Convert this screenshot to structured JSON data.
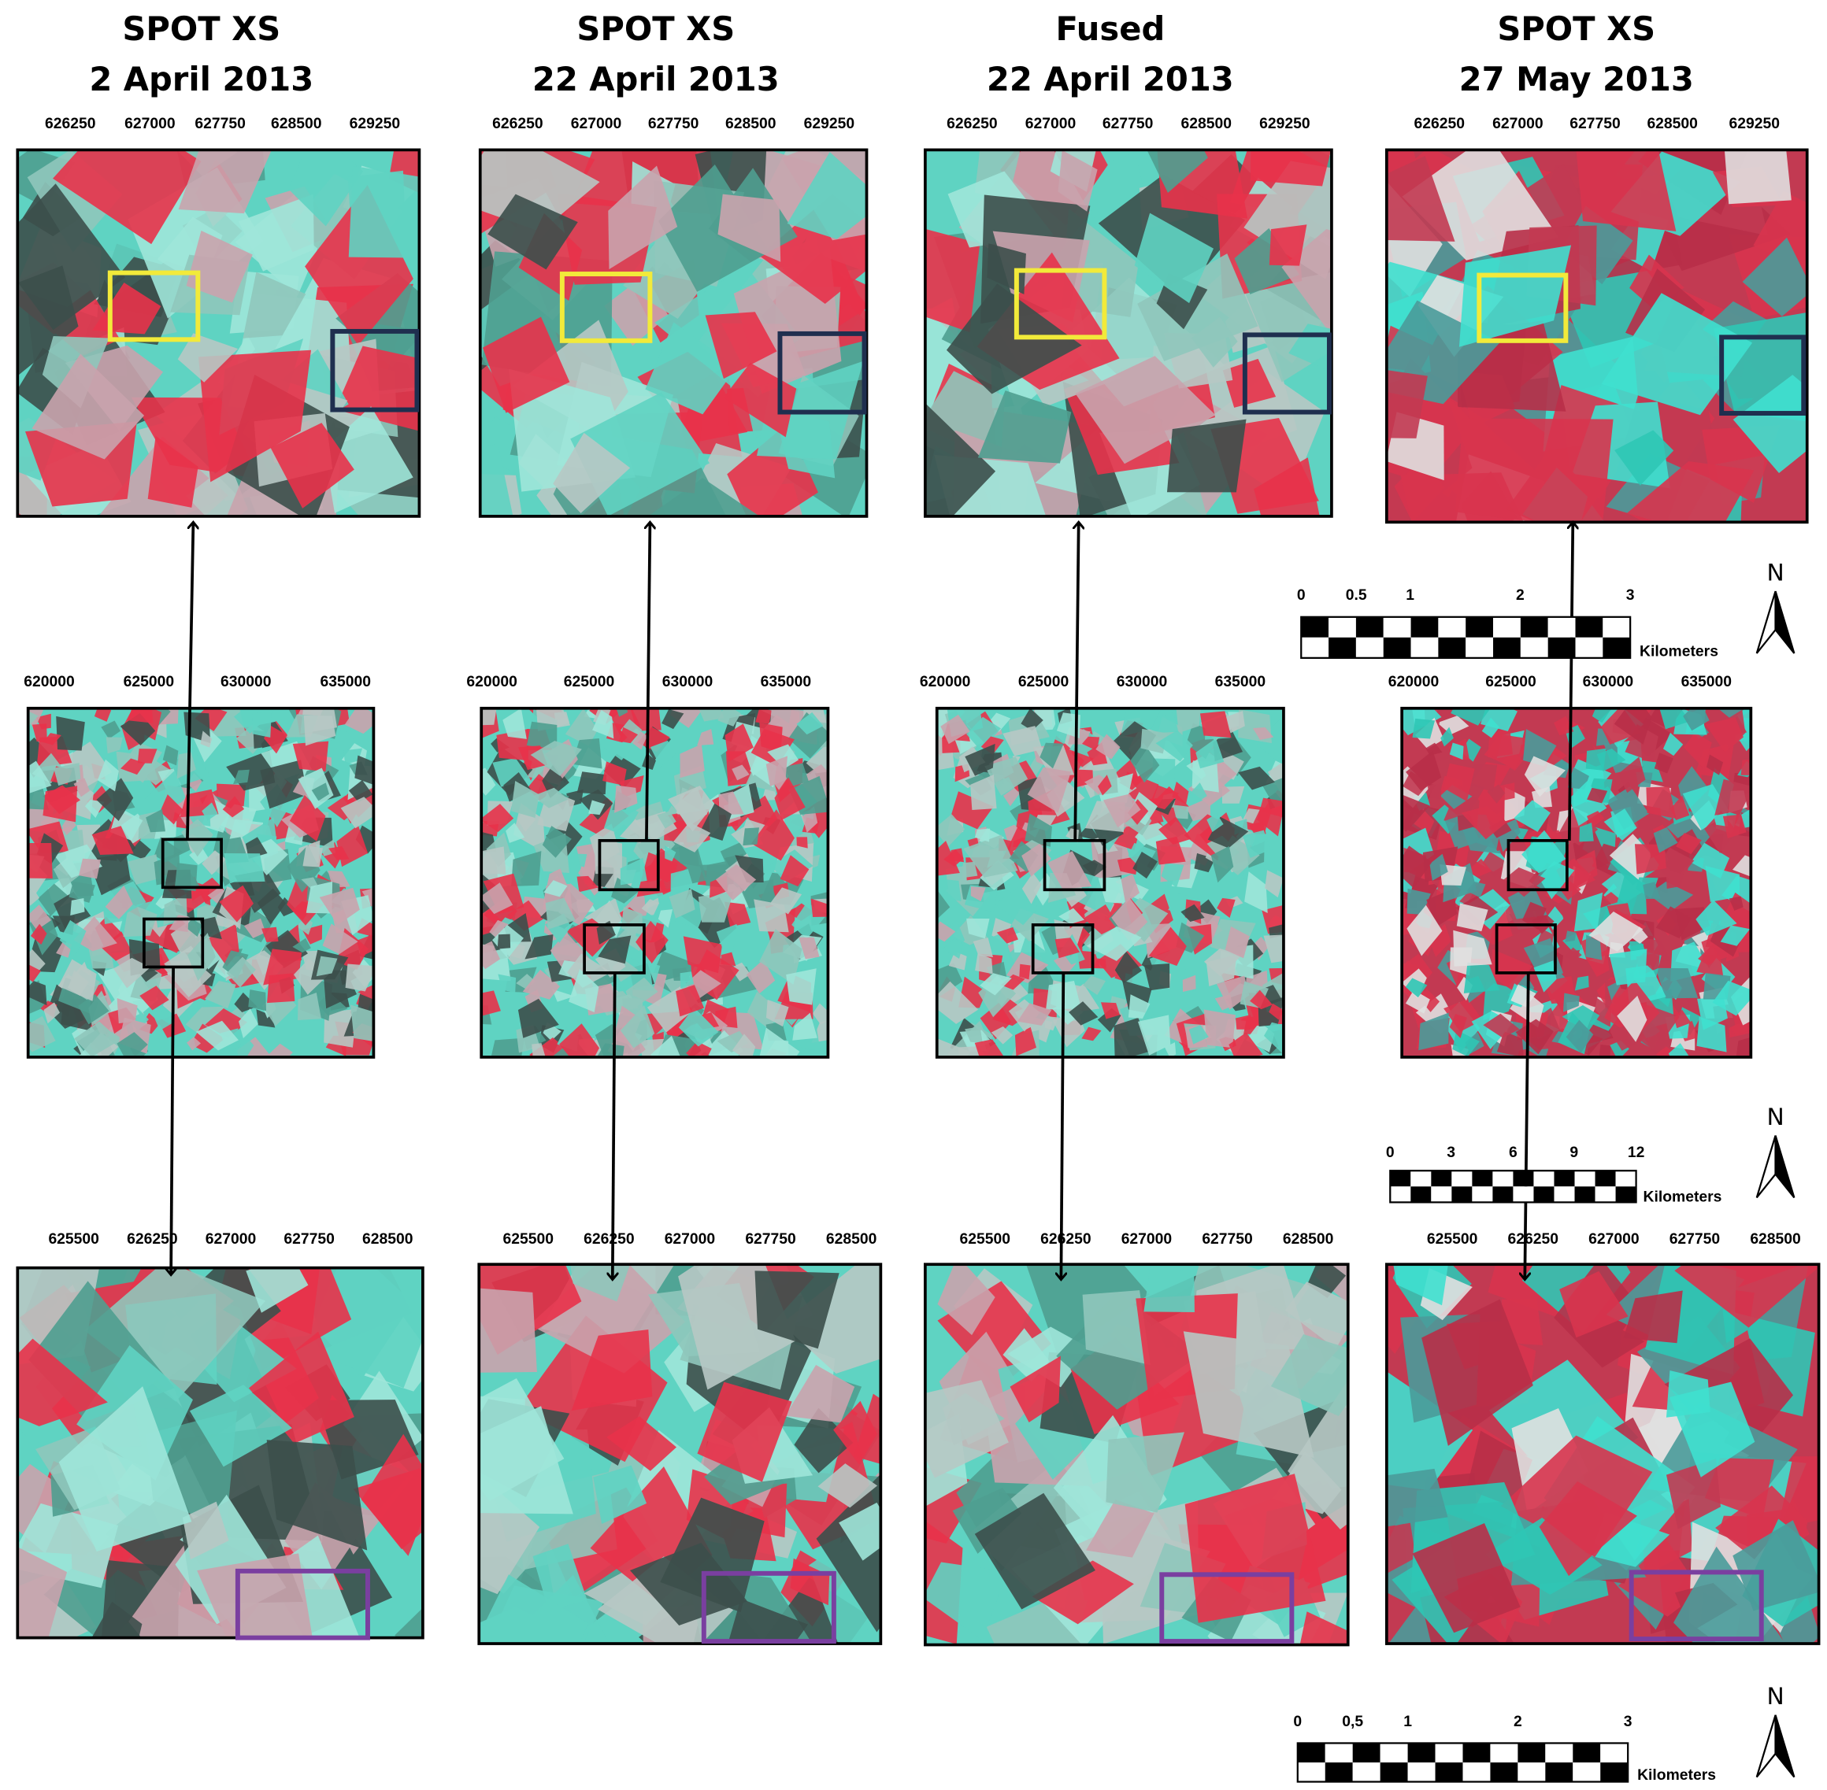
{
  "columns": [
    {
      "title": [
        "SPOT XS",
        "2 April 2013"
      ]
    },
    {
      "title": [
        "SPOT XS",
        "22 April 2013"
      ]
    },
    {
      "title": [
        "Fused",
        "22 April 2013"
      ]
    },
    {
      "title": [
        "SPOT XS",
        "27 May 2013"
      ]
    }
  ],
  "ticks": {
    "top": [
      "626250",
      "627000",
      "627750",
      "628500",
      "629250"
    ],
    "middle": [
      "620000",
      "625000",
      "630000",
      "635000"
    ],
    "bottom": [
      "625500",
      "626250",
      "627000",
      "627750",
      "628500"
    ]
  },
  "scale_bars": [
    {
      "labels": [
        "0",
        "0.5",
        "1",
        "2",
        "3"
      ],
      "unit": "Kilometers",
      "north": "N"
    },
    {
      "labels": [
        "0",
        "3",
        "6",
        "9",
        "12"
      ],
      "unit": "Kilometers",
      "north": "N"
    },
    {
      "labels": [
        "0",
        "0,5",
        "1",
        "2",
        "3"
      ],
      "unit": "Kilometers",
      "north": "N"
    }
  ]
}
